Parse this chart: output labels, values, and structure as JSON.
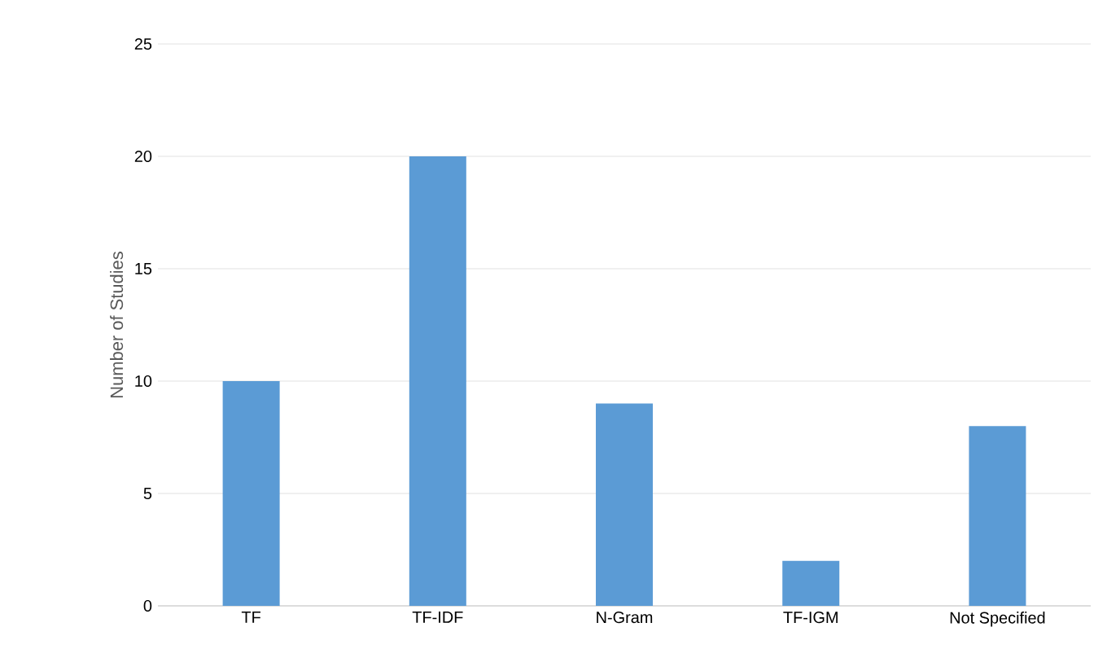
{
  "chart_data": {
    "type": "bar",
    "ylabel": "Number of Studies",
    "categories": [
      "TF",
      "TF-IDF",
      "N-Gram",
      "TF-IGM",
      "Not Specified"
    ],
    "values": [
      10,
      20,
      9,
      2,
      8
    ],
    "color": "#5b9bd5",
    "ylim": [
      0,
      25
    ],
    "yticks": [
      0,
      5,
      10,
      15,
      20,
      25
    ],
    "grid": "y"
  }
}
